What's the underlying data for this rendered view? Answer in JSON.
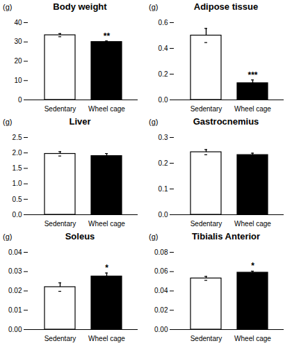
{
  "chart_data": [
    {
      "type": "bar",
      "title": "Body weight",
      "y_label": "(g)",
      "categories": [
        "Sedentary",
        "Wheel cage"
      ],
      "values": [
        33.5,
        30.0
      ],
      "errors": [
        0.8,
        0.5
      ],
      "colors": [
        "#ffffff",
        "#000000"
      ],
      "ylim": [
        0,
        40
      ],
      "yticks": [
        0,
        10,
        20,
        30,
        40
      ],
      "annotations": [
        {
          "category": "Wheel cage",
          "text": "**"
        }
      ]
    },
    {
      "type": "bar",
      "title": "Adipose tissue",
      "y_label": "(g)",
      "categories": [
        "Sedentary",
        "Wheel cage"
      ],
      "values": [
        0.5,
        0.13
      ],
      "errors": [
        0.055,
        0.025
      ],
      "colors": [
        "#ffffff",
        "#000000"
      ],
      "ylim": [
        0,
        0.6
      ],
      "yticks": [
        {
          "value": 0,
          "label": "0.0"
        },
        0.2,
        0.4,
        0.6
      ],
      "annotations": [
        {
          "category": "Wheel cage",
          "text": "***"
        }
      ]
    },
    {
      "type": "bar",
      "title": "Liver",
      "y_label": "(g)",
      "categories": [
        "Sedentary",
        "Wheel cage"
      ],
      "values": [
        1.97,
        1.9
      ],
      "errors": [
        0.07,
        0.08
      ],
      "colors": [
        "#ffffff",
        "#000000"
      ],
      "ylim": [
        0,
        2.5
      ],
      "yticks": [
        {
          "value": 0,
          "label": "0.0"
        },
        0.5,
        {
          "value": 1,
          "label": "1.0"
        },
        1.5,
        {
          "value": 2,
          "label": "2.0"
        },
        2.5
      ],
      "annotations": []
    },
    {
      "type": "bar",
      "title": "Gastrocnemius",
      "y_label": "(g)",
      "categories": [
        "Sedentary",
        "Wheel cage"
      ],
      "values": [
        0.243,
        0.232
      ],
      "errors": [
        0.01,
        0.007
      ],
      "colors": [
        "#ffffff",
        "#000000"
      ],
      "ylim": [
        0,
        0.3
      ],
      "yticks": [
        {
          "value": 0,
          "label": "0.0"
        },
        0.1,
        0.2,
        0.3
      ],
      "annotations": []
    },
    {
      "type": "bar",
      "title": "Soleus",
      "y_label": "(g)",
      "categories": [
        "Sedentary",
        "Wheel cage"
      ],
      "values": [
        0.022,
        0.0275
      ],
      "errors": [
        0.0022,
        0.0018
      ],
      "colors": [
        "#ffffff",
        "#000000"
      ],
      "ylim": [
        0,
        0.04
      ],
      "yticks": [
        {
          "value": 0,
          "label": "0.00"
        },
        0.01,
        0.02,
        0.03,
        0.04
      ],
      "annotations": [
        {
          "category": "Wheel cage",
          "text": "*"
        }
      ]
    },
    {
      "type": "bar",
      "title": "Tibialis Anterior",
      "y_label": "(g)",
      "categories": [
        "Sedentary",
        "Wheel cage"
      ],
      "values": [
        0.053,
        0.059
      ],
      "errors": [
        0.002,
        0.0015
      ],
      "colors": [
        "#ffffff",
        "#000000"
      ],
      "ylim": [
        0,
        0.08
      ],
      "yticks": [
        {
          "value": 0,
          "label": "0.00"
        },
        0.02,
        0.04,
        0.06,
        0.08
      ],
      "annotations": [
        {
          "category": "Wheel cage",
          "text": "*"
        }
      ]
    }
  ]
}
